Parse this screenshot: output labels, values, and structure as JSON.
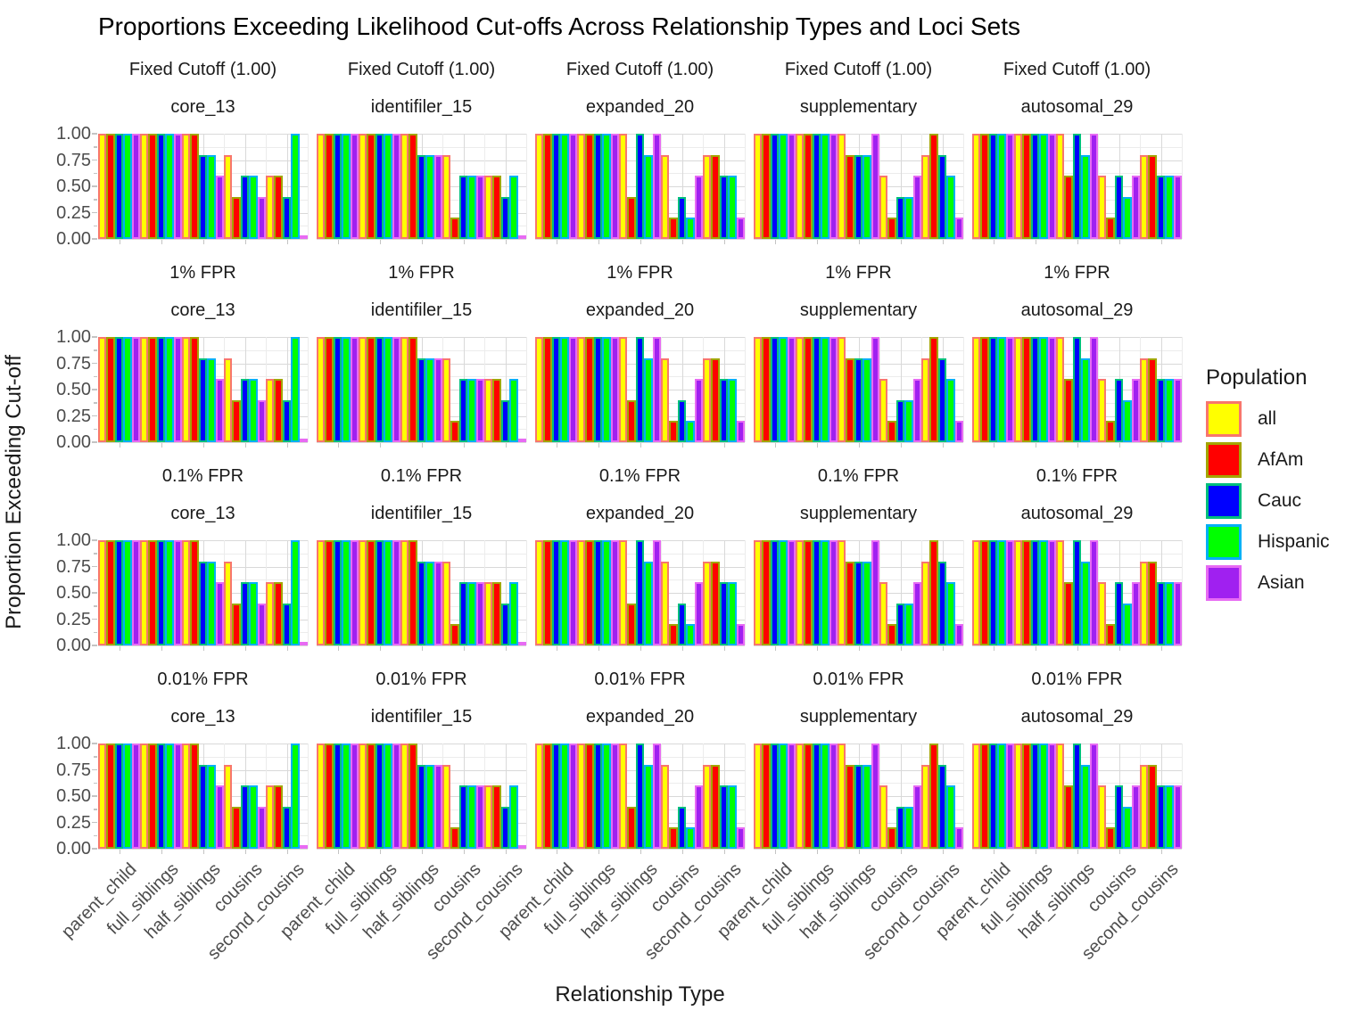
{
  "title": "Proportions Exceeding Likelihood Cut-offs Across Relationship Types and Loci Sets",
  "axes": {
    "x_title": "Relationship Type",
    "y_title": "Proportion Exceeding Cut-off",
    "y_tick_labels": [
      "1.00",
      "0.75",
      "0.50",
      "0.25",
      "0.00"
    ]
  },
  "legend": {
    "title": "Population",
    "items": [
      {
        "label": "all",
        "fill": "#FFFF00",
        "outline": "#F8766D"
      },
      {
        "label": "AfAm",
        "fill": "#FF0000",
        "outline": "#A3A500"
      },
      {
        "label": "Cauc",
        "fill": "#0000FF",
        "outline": "#00BF7D"
      },
      {
        "label": "Hispanic",
        "fill": "#00FF00",
        "outline": "#00B0F6"
      },
      {
        "label": "Asian",
        "fill": "#A020F0",
        "outline": "#E76BF3"
      }
    ]
  },
  "chart_data": {
    "type": "bar",
    "title": "Proportions Exceeding Likelihood Cut-offs Across Relationship Types and Loci Sets",
    "xlabel": "Relationship Type",
    "ylabel": "Proportion Exceeding Cut-off",
    "ylim": [
      0,
      1
    ],
    "y_major_ticks": [
      0,
      0.25,
      0.5,
      0.75,
      1.0
    ],
    "y_minor_step": 0.125,
    "grid": "light gray major+minor gridlines on white panel",
    "legend_position": "right",
    "series_names": [
      "all",
      "AfAm",
      "Cauc",
      "Hispanic",
      "Asian"
    ],
    "categories": [
      "parent_child",
      "full_siblings",
      "half_siblings",
      "cousins",
      "second_cousins"
    ],
    "facet_rows": [
      {
        "label": "Fixed Cutoff (1.00)"
      },
      {
        "label": "1% FPR"
      },
      {
        "label": "0.1% FPR"
      },
      {
        "label": "0.01% FPR"
      }
    ],
    "values_identical_across_rows": true,
    "facet_columns": [
      {
        "label": "core_13",
        "values": {
          "parent_child": [
            1.0,
            1.0,
            1.0,
            1.0,
            1.0
          ],
          "full_siblings": [
            1.0,
            1.0,
            1.0,
            1.0,
            1.0
          ],
          "half_siblings": [
            1.0,
            1.0,
            0.8,
            0.8,
            0.6
          ],
          "cousins": [
            0.8,
            0.4,
            0.6,
            0.6,
            0.4
          ],
          "second_cousins": [
            0.6,
            0.6,
            0.4,
            1.0,
            0.0
          ]
        }
      },
      {
        "label": "identifiler_15",
        "values": {
          "parent_child": [
            1.0,
            1.0,
            1.0,
            1.0,
            1.0
          ],
          "full_siblings": [
            1.0,
            1.0,
            1.0,
            1.0,
            1.0
          ],
          "half_siblings": [
            1.0,
            1.0,
            0.8,
            0.8,
            0.8
          ],
          "cousins": [
            0.8,
            0.2,
            0.6,
            0.6,
            0.6
          ],
          "second_cousins": [
            0.6,
            0.6,
            0.4,
            0.6,
            0.0
          ]
        }
      },
      {
        "label": "expanded_20",
        "values": {
          "parent_child": [
            1.0,
            1.0,
            1.0,
            1.0,
            1.0
          ],
          "full_siblings": [
            1.0,
            1.0,
            1.0,
            1.0,
            1.0
          ],
          "half_siblings": [
            1.0,
            0.4,
            1.0,
            0.8,
            1.0
          ],
          "cousins": [
            0.8,
            0.2,
            0.4,
            0.2,
            0.6
          ],
          "second_cousins": [
            0.8,
            0.8,
            0.6,
            0.6,
            0.2
          ]
        }
      },
      {
        "label": "supplementary",
        "values": {
          "parent_child": [
            1.0,
            1.0,
            1.0,
            1.0,
            1.0
          ],
          "full_siblings": [
            1.0,
            1.0,
            1.0,
            1.0,
            1.0
          ],
          "half_siblings": [
            1.0,
            0.8,
            0.8,
            0.8,
            1.0
          ],
          "cousins": [
            0.6,
            0.2,
            0.4,
            0.4,
            0.6
          ],
          "second_cousins": [
            0.8,
            1.0,
            0.8,
            0.6,
            0.2
          ]
        }
      },
      {
        "label": "autosomal_29",
        "values": {
          "parent_child": [
            1.0,
            1.0,
            1.0,
            1.0,
            1.0
          ],
          "full_siblings": [
            1.0,
            1.0,
            1.0,
            1.0,
            1.0
          ],
          "half_siblings": [
            1.0,
            0.6,
            1.0,
            0.8,
            1.0
          ],
          "cousins": [
            0.6,
            0.2,
            0.6,
            0.4,
            0.6
          ],
          "second_cousins": [
            0.8,
            0.8,
            0.6,
            0.6,
            0.6
          ]
        }
      }
    ]
  }
}
